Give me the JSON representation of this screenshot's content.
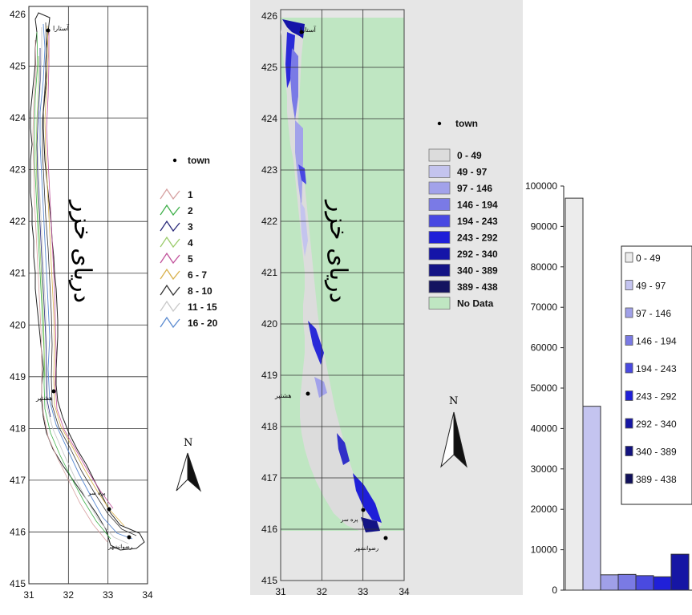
{
  "map_axes": {
    "y_ticks": [
      "426",
      "425",
      "424",
      "423",
      "422",
      "421",
      "420",
      "419",
      "418",
      "417",
      "416",
      "415"
    ],
    "x_ticks": [
      "31",
      "32",
      "33",
      "34"
    ]
  },
  "sea_label": "دریای خزر",
  "north_label": "N",
  "towns": [
    "آستارا",
    "هشتپر",
    "پره سر",
    "رضوانشهر"
  ],
  "legend_depth": {
    "town_label": "town",
    "items": [
      {
        "label": "1",
        "color": "#d6a0a0"
      },
      {
        "label": "2",
        "color": "#3fb04a"
      },
      {
        "label": "3",
        "color": "#2a2a7a"
      },
      {
        "label": "4",
        "color": "#9acb6a"
      },
      {
        "label": "5",
        "color": "#c0509a"
      },
      {
        "label": "6 - 7",
        "color": "#d8b04a"
      },
      {
        "label": "8 - 10",
        "color": "#333333"
      },
      {
        "label": "11 - 15",
        "color": "#c8c8c8"
      },
      {
        "label": "16 - 20",
        "color": "#5a8ad0"
      }
    ]
  },
  "legend_classes": {
    "town_label": "town",
    "items": [
      {
        "label": "0 - 49",
        "color": "#dcdcdc"
      },
      {
        "label": "49 - 97",
        "color": "#c4c4ee"
      },
      {
        "label": "97 - 146",
        "color": "#a2a2ea"
      },
      {
        "label": "146 - 194",
        "color": "#7a7ae6"
      },
      {
        "label": "194 - 243",
        "color": "#4848e2"
      },
      {
        "label": "243 - 292",
        "color": "#1f1fd8"
      },
      {
        "label": "292 - 340",
        "color": "#1515a8"
      },
      {
        "label": "340 - 389",
        "color": "#131385"
      },
      {
        "label": "389 - 438",
        "color": "#141460"
      },
      {
        "label": "No Data",
        "color": "#bfe6c2"
      }
    ]
  },
  "chart_data": {
    "type": "bar",
    "categories": [
      "0 - 49",
      "49 - 97",
      "97 - 146",
      "146 - 194",
      "194 - 243",
      "243 - 292",
      "292 - 340"
    ],
    "values": [
      97000,
      45500,
      3800,
      3900,
      3600,
      3300,
      8900
    ],
    "colors": [
      "#ececec",
      "#c4c4f0",
      "#a0a0e8",
      "#7a7ae4",
      "#4a4ae0",
      "#2020d8",
      "#1616a4"
    ],
    "ylim": [
      0,
      100000
    ],
    "y_ticks": [
      "100000",
      "90000",
      "80000",
      "70000",
      "60000",
      "50000",
      "40000",
      "30000",
      "20000",
      "10000",
      "0"
    ],
    "legend": {
      "items": [
        {
          "label": "0 - 49",
          "color": "#ececec"
        },
        {
          "label": "49 - 97",
          "color": "#c4c4f0"
        },
        {
          "label": "97 - 146",
          "color": "#a0a0e8"
        },
        {
          "label": "146 - 194",
          "color": "#7a7ae4"
        },
        {
          "label": "194 - 243",
          "color": "#4a4ae0"
        },
        {
          "label": "243 - 292",
          "color": "#2020d8"
        },
        {
          "label": "292 - 340",
          "color": "#1616a4"
        },
        {
          "label": "340 - 389",
          "color": "#12127e"
        },
        {
          "label": "389 - 438",
          "color": "#10105a"
        }
      ]
    }
  }
}
